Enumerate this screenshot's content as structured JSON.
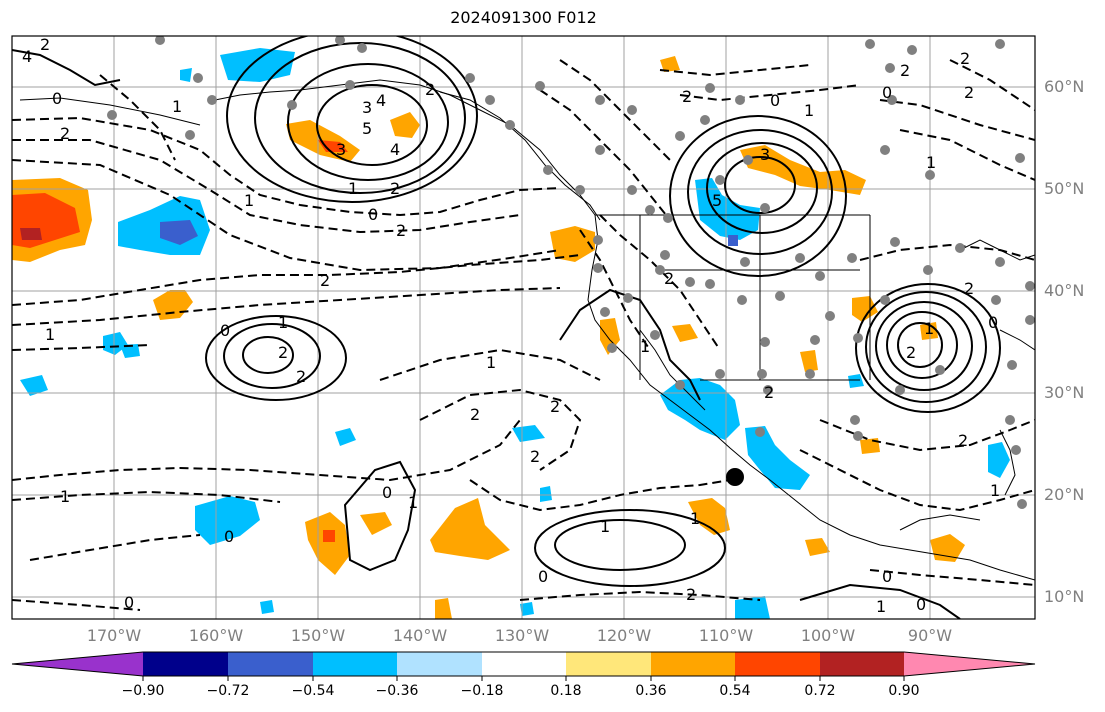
{
  "title": "2024091300 F012",
  "latitude_labels": [
    "60°N",
    "50°N",
    "40°N",
    "30°N",
    "20°N",
    "10°N"
  ],
  "longitude_labels": [
    "170°W",
    "160°W",
    "150°W",
    "140°W",
    "130°W",
    "120°W",
    "110°W",
    "100°W",
    "90°W"
  ],
  "colorbar": {
    "tick_labels": [
      "−0.90",
      "−0.72",
      "−0.54",
      "−0.36",
      "−0.18",
      "0.18",
      "0.36",
      "0.54",
      "0.72",
      "0.90"
    ],
    "colors": [
      "#9932cc",
      "#00008b",
      "#3a5fcd",
      "#00bfff",
      "#b0e2ff",
      "#ffffff",
      "#ffe77a",
      "#ffa500",
      "#ff4500",
      "#b22222",
      "#ff88b0"
    ]
  },
  "contour_labels": [
    "2",
    "4",
    "0",
    "2",
    "1",
    "3",
    "4",
    "5",
    "3",
    "4",
    "1",
    "2",
    "0",
    "2",
    "1",
    "2",
    "2",
    "0",
    "2",
    "1",
    "1",
    "2",
    "2",
    "1",
    "2",
    "2",
    "1",
    "0",
    "0",
    "1",
    "1",
    "1",
    "0",
    "2",
    "2",
    "0",
    "0",
    "1",
    "2",
    "3",
    "5",
    "1",
    "0",
    "2",
    "2",
    "1",
    "2",
    "0",
    "1",
    "2",
    "0",
    "0",
    "1",
    "2",
    "1",
    "2",
    "2"
  ],
  "colors": {
    "frame": "#000000",
    "grid": "#a0a0a0",
    "station": "#808080",
    "label_gray": "#808080"
  }
}
